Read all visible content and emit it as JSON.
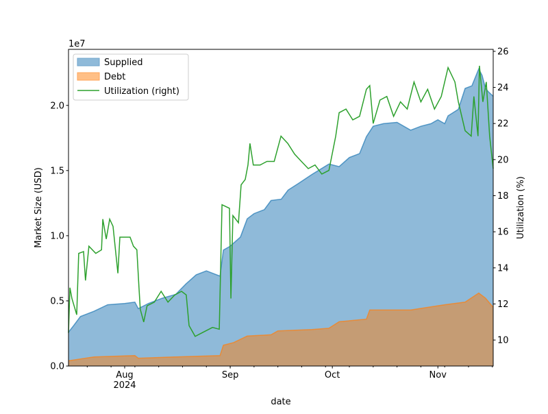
{
  "chart_data": {
    "type": "area",
    "xlabel": "date",
    "ylabel": "Market Size (USD)",
    "ylabel_right": "Utilization (%)",
    "y_offset_label": "1e7",
    "xlim": [
      "2024-07-15T12:00",
      "2024-11-17T06:00"
    ],
    "ylim": [
      0,
      24300000
    ],
    "ylim_right": [
      8.56,
      26.11
    ],
    "x_ticks": [
      {
        "date": "2024-08-01",
        "label": "Aug",
        "sublabel": "2024"
      },
      {
        "date": "2024-09-01",
        "label": "Sep"
      },
      {
        "date": "2024-10-01",
        "label": "Oct"
      },
      {
        "date": "2024-11-01",
        "label": "Nov"
      }
    ],
    "y_ticks": [
      {
        "value": 0,
        "label": "0.0"
      },
      {
        "value": 5000000,
        "label": "0.5"
      },
      {
        "value": 10000000,
        "label": "1.0"
      },
      {
        "value": 15000000,
        "label": "1.5"
      },
      {
        "value": 20000000,
        "label": "2.0"
      }
    ],
    "y_ticks_right": [
      {
        "value": 10,
        "label": "10"
      },
      {
        "value": 12,
        "label": "12"
      },
      {
        "value": 14,
        "label": "14"
      },
      {
        "value": 16,
        "label": "16"
      },
      {
        "value": 18,
        "label": "18"
      },
      {
        "value": 20,
        "label": "20"
      },
      {
        "value": 22,
        "label": "22"
      },
      {
        "value": 24,
        "label": "24"
      },
      {
        "value": 26,
        "label": "26"
      }
    ],
    "grid": false,
    "legend": {
      "placement": "upper-left",
      "entries": [
        "Supplied",
        "Debt",
        "Utilization (right)"
      ]
    },
    "series": [
      {
        "name": "Supplied",
        "kind": "area",
        "axis": "left",
        "color": "#1f77b4",
        "fill": "#8fbad9",
        "x": [
          "2024-07-15T12:00",
          "2024-07-17",
          "2024-07-19",
          "2024-07-23",
          "2024-07-27",
          "2024-08-01",
          "2024-08-04",
          "2024-08-05",
          "2024-08-08",
          "2024-08-12",
          "2024-08-16",
          "2024-08-19",
          "2024-08-22",
          "2024-08-25",
          "2024-08-29",
          "2024-08-30",
          "2024-09-01",
          "2024-09-04",
          "2024-09-06",
          "2024-09-08",
          "2024-09-11",
          "2024-09-13",
          "2024-09-16",
          "2024-09-18",
          "2024-09-21",
          "2024-09-25",
          "2024-09-30",
          "2024-10-03",
          "2024-10-06",
          "2024-10-09",
          "2024-10-11",
          "2024-10-13",
          "2024-10-16",
          "2024-10-20",
          "2024-10-22",
          "2024-10-24",
          "2024-10-27",
          "2024-10-30",
          "2024-11-01",
          "2024-11-03",
          "2024-11-04",
          "2024-11-07",
          "2024-11-09",
          "2024-11-11",
          "2024-11-13",
          "2024-11-14",
          "2024-11-15",
          "2024-11-16",
          "2024-11-17T06:00"
        ],
        "y": [
          2600000,
          3100000,
          3800000,
          4200000,
          4700000,
          4800000,
          4900000,
          4400000,
          4800000,
          5200000,
          5500000,
          6300000,
          7000000,
          7300000,
          6900000,
          8900000,
          9200000,
          9900000,
          11300000,
          11700000,
          12000000,
          12700000,
          12800000,
          13500000,
          14000000,
          14700000,
          15500000,
          15300000,
          16000000,
          16300000,
          17600000,
          18400000,
          18600000,
          18700000,
          18400000,
          18100000,
          18400000,
          18600000,
          18900000,
          18600000,
          19200000,
          19700000,
          21300000,
          21500000,
          22800000,
          22300000,
          21300000,
          21000000,
          20700000
        ]
      },
      {
        "name": "Debt",
        "kind": "area",
        "axis": "left",
        "color": "#ff7f0e",
        "fill": "#c59c74",
        "x": [
          "2024-07-15T12:00",
          "2024-07-23",
          "2024-08-04",
          "2024-08-05",
          "2024-08-16",
          "2024-08-29",
          "2024-08-30",
          "2024-09-02",
          "2024-09-06",
          "2024-09-13",
          "2024-09-15",
          "2024-09-25",
          "2024-09-30",
          "2024-10-03",
          "2024-10-11",
          "2024-10-12",
          "2024-10-24",
          "2024-11-03",
          "2024-11-09",
          "2024-11-13",
          "2024-11-15",
          "2024-11-17T06:00"
        ],
        "y": [
          400000,
          700000,
          800000,
          600000,
          700000,
          800000,
          1600000,
          1800000,
          2300000,
          2400000,
          2700000,
          2800000,
          2900000,
          3400000,
          3600000,
          4300000,
          4300000,
          4700000,
          4900000,
          5600000,
          5200000,
          4500000
        ]
      },
      {
        "name": "Utilization (right)",
        "kind": "line",
        "axis": "right",
        "color": "#2ca02c",
        "x": [
          "2024-07-15T12:00",
          "2024-07-15T22:00",
          "2024-07-16T12:00",
          "2024-07-17T22:00",
          "2024-07-18T12:00",
          "2024-07-19T22:00",
          "2024-07-20T12:00",
          "2024-07-21T12:00",
          "2024-07-23T12:00",
          "2024-07-25T05:00",
          "2024-07-25T14:00",
          "2024-07-26T14:00",
          "2024-07-27T14:00",
          "2024-07-28T14:00",
          "2024-07-30T00:00",
          "2024-07-30T14:00",
          "2024-07-31T14:00",
          "2024-08-02T14:00",
          "2024-08-03T14:00",
          "2024-08-04T14:00",
          "2024-08-05T05:00",
          "2024-08-05T14:00",
          "2024-08-06T14:00",
          "2024-08-07T14:00",
          "2024-08-09T17:00",
          "2024-08-11T17:00",
          "2024-08-13T17:00",
          "2024-08-15T17:00",
          "2024-08-17T17:00",
          "2024-08-19T02:00",
          "2024-08-19T22:00",
          "2024-08-21T17:00",
          "2024-08-23T17:00",
          "2024-08-26T19:00",
          "2024-08-28T19:00",
          "2024-08-29T14:00",
          "2024-08-31T19:00",
          "2024-09-01T05:00",
          "2024-09-01T19:00",
          "2024-09-03T10:00",
          "2024-09-04T05:00",
          "2024-09-05T10:00",
          "2024-09-06T05:00",
          "2024-09-06T19:00",
          "2024-09-07T19:00",
          "2024-09-09T19:00",
          "2024-09-11T19:00",
          "2024-09-13T22:00",
          "2024-09-15T22:00",
          "2024-09-17T22:00",
          "2024-09-19T22:00",
          "2024-09-21T22:00",
          "2024-09-23T22:00",
          "2024-09-25T22:00",
          "2024-09-27T22:00",
          "2024-09-30T00:00",
          "2024-10-02T00:00",
          "2024-10-03T00:00",
          "2024-10-05T00:00",
          "2024-10-07T00:00",
          "2024-10-09T00:00",
          "2024-10-11T00:00",
          "2024-10-12T00:00",
          "2024-10-13T00:00",
          "2024-10-15T00:00",
          "2024-10-17T00:00",
          "2024-10-19T00:00",
          "2024-10-21T00:00",
          "2024-10-23T00:00",
          "2024-10-25T00:00",
          "2024-10-27T00:00",
          "2024-10-29T00:00",
          "2024-10-31T00:00",
          "2024-11-02T00:00",
          "2024-11-04T00:00",
          "2024-11-06T00:00",
          "2024-11-07T00:00",
          "2024-11-09T00:00",
          "2024-11-10T19:00",
          "2024-11-11T14:00",
          "2024-11-12T19:00",
          "2024-11-13T05:00",
          "2024-11-14T05:00",
          "2024-11-15T05:00",
          "2024-11-16T05:00",
          "2024-11-17T06:00"
        ],
        "y": [
          10.4,
          12.9,
          12.3,
          11.4,
          14.8,
          14.9,
          13.3,
          15.2,
          14.8,
          15.0,
          16.7,
          15.6,
          16.7,
          16.3,
          13.7,
          15.7,
          15.7,
          15.7,
          15.2,
          15.0,
          12.9,
          11.7,
          11.0,
          11.9,
          12.1,
          12.7,
          12.1,
          12.5,
          12.7,
          12.5,
          10.8,
          10.2,
          10.4,
          10.7,
          10.6,
          17.5,
          17.3,
          12.3,
          16.9,
          16.5,
          18.6,
          18.9,
          19.7,
          20.9,
          19.7,
          19.7,
          19.9,
          19.9,
          21.3,
          20.9,
          20.3,
          19.9,
          19.5,
          19.7,
          19.2,
          19.4,
          21.3,
          22.6,
          22.8,
          22.2,
          22.4,
          23.9,
          24.1,
          22.0,
          23.3,
          23.5,
          22.4,
          23.2,
          22.8,
          24.3,
          23.2,
          23.9,
          22.8,
          23.5,
          25.1,
          24.3,
          23.2,
          21.6,
          21.3,
          23.5,
          21.3,
          25.2,
          23.2,
          24.3,
          21.3,
          19.5
        ]
      }
    ]
  }
}
